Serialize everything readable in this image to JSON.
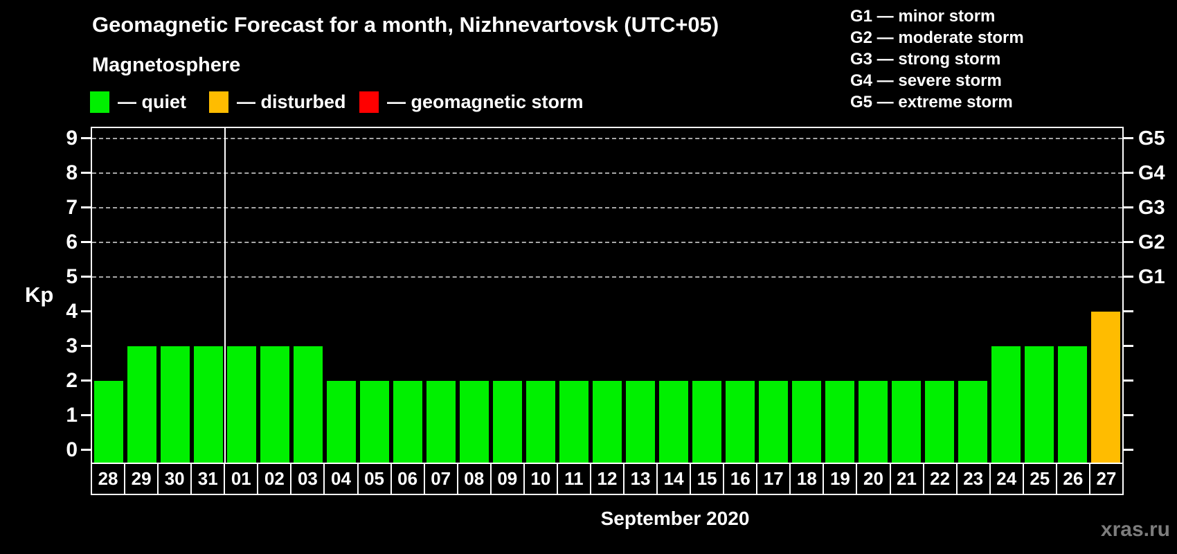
{
  "title": "Geomagnetic Forecast for a month, Nizhnevartovsk (UTC+05)",
  "subtitle": "Magnetosphere",
  "legend": {
    "items": [
      {
        "key": "quiet",
        "label": "— quiet",
        "color": "#00f000"
      },
      {
        "key": "disturbed",
        "label": "— disturbed",
        "color": "#ffbc00"
      },
      {
        "key": "storm",
        "label": "— geomagnetic storm",
        "color": "#ff0000"
      }
    ]
  },
  "storm_scale": [
    {
      "code": "G1",
      "label": "minor storm",
      "text": "G1 — minor storm"
    },
    {
      "code": "G2",
      "label": "moderate storm",
      "text": "G2 — moderate storm"
    },
    {
      "code": "G3",
      "label": "strong storm",
      "text": "G3 — strong storm"
    },
    {
      "code": "G4",
      "label": "severe storm",
      "text": "G4 — severe storm"
    },
    {
      "code": "G5",
      "label": "extreme storm",
      "text": "G5 — extreme storm"
    }
  ],
  "watermark": "xras.ru",
  "colors": {
    "background": "#000000",
    "quiet": "#00f000",
    "disturbed": "#ffbc00",
    "storm": "#ff0000",
    "grid": "#a8a8a8",
    "axis": "#ffffff",
    "text": "#ffffff",
    "watermark": "#7d7d7d"
  },
  "chart_data": {
    "type": "bar",
    "title": "Geomagnetic Forecast for a month, Nizhnevartovsk (UTC+05)",
    "xlabel": "September 2020",
    "ylabel": "Kp",
    "ylim": [
      0,
      9
    ],
    "y_ticks": [
      0,
      1,
      2,
      3,
      4,
      5,
      6,
      7,
      8,
      9
    ],
    "gridlines_kp": [
      5,
      6,
      7,
      8,
      9
    ],
    "grid": "dashed horizontal lines at Kp 5-9 only",
    "legend_position": "top-left",
    "categories": [
      "28",
      "29",
      "30",
      "31",
      "01",
      "02",
      "03",
      "04",
      "05",
      "06",
      "07",
      "08",
      "09",
      "10",
      "11",
      "12",
      "13",
      "14",
      "15",
      "16",
      "17",
      "18",
      "19",
      "20",
      "21",
      "22",
      "23",
      "24",
      "25",
      "26",
      "27"
    ],
    "values": [
      2,
      3,
      3,
      3,
      3,
      3,
      3,
      2,
      2,
      2,
      2,
      2,
      2,
      2,
      2,
      2,
      2,
      2,
      2,
      2,
      2,
      2,
      2,
      2,
      2,
      2,
      2,
      3,
      3,
      3,
      4
    ],
    "statuses": [
      "quiet",
      "quiet",
      "quiet",
      "quiet",
      "quiet",
      "quiet",
      "quiet",
      "quiet",
      "quiet",
      "quiet",
      "quiet",
      "quiet",
      "quiet",
      "quiet",
      "quiet",
      "quiet",
      "quiet",
      "quiet",
      "quiet",
      "quiet",
      "quiet",
      "quiet",
      "quiet",
      "quiet",
      "quiet",
      "quiet",
      "quiet",
      "quiet",
      "quiet",
      "quiet",
      "disturbed"
    ],
    "right_axis": [
      {
        "kp": 5,
        "label": "G1"
      },
      {
        "kp": 6,
        "label": "G2"
      },
      {
        "kp": 7,
        "label": "G3"
      },
      {
        "kp": 8,
        "label": "G4"
      },
      {
        "kp": 9,
        "label": "G5"
      }
    ],
    "month_separator_after_index": 3
  }
}
